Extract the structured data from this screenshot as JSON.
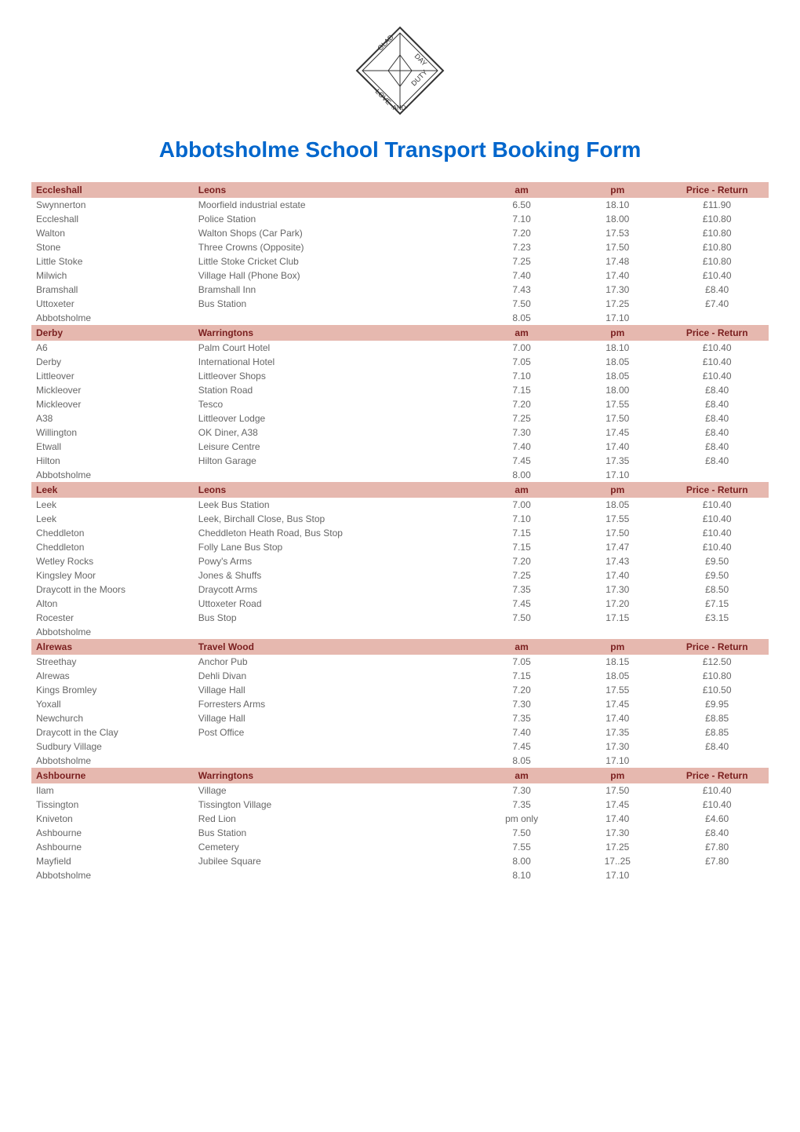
{
  "title": "Abbotsholme School Transport Booking Form",
  "title_color": "#0066cc",
  "header_bg": "#e6b8af",
  "header_fg": "#7a1f1f",
  "row_fg": "#666666",
  "headers": {
    "am": "am",
    "pm": "pm",
    "price": "Price - Return"
  },
  "sections": [
    {
      "route": "Eccleshall",
      "operator": "Leons",
      "rows": [
        {
          "loc": "Swynnerton",
          "stop": "Moorfield industrial estate",
          "am": "6.50",
          "pm": "18.10",
          "price": "£11.90"
        },
        {
          "loc": "Eccleshall",
          "stop": "Police Station",
          "am": "7.10",
          "pm": "18.00",
          "price": "£10.80"
        },
        {
          "loc": "Walton",
          "stop": "Walton Shops (Car Park)",
          "am": "7.20",
          "pm": "17.53",
          "price": "£10.80"
        },
        {
          "loc": "Stone",
          "stop": "Three Crowns (Opposite)",
          "am": "7.23",
          "pm": "17.50",
          "price": "£10.80"
        },
        {
          "loc": "Little Stoke",
          "stop": "Little Stoke Cricket Club",
          "am": "7.25",
          "pm": "17.48",
          "price": "£10.80"
        },
        {
          "loc": "Milwich",
          "stop": "Village Hall (Phone Box)",
          "am": "7.40",
          "pm": "17.40",
          "price": "£10.40"
        },
        {
          "loc": "Bramshall",
          "stop": "Bramshall Inn",
          "am": "7.43",
          "pm": "17.30",
          "price": "£8.40"
        },
        {
          "loc": "Uttoxeter",
          "stop": "Bus Station",
          "am": "7.50",
          "pm": "17.25",
          "price": "£7.40"
        },
        {
          "loc": "Abbotsholme",
          "stop": "",
          "am": "8.05",
          "pm": "17.10",
          "price": ""
        }
      ]
    },
    {
      "route": "Derby",
      "operator": "Warringtons",
      "rows": [
        {
          "loc": "A6",
          "stop": "Palm Court Hotel",
          "am": "7.00",
          "pm": "18.10",
          "price": "£10.40"
        },
        {
          "loc": "Derby",
          "stop": "International Hotel",
          "am": "7.05",
          "pm": "18.05",
          "price": "£10.40"
        },
        {
          "loc": "Littleover",
          "stop": "Littleover Shops",
          "am": "7.10",
          "pm": "18.05",
          "price": "£10.40"
        },
        {
          "loc": "Mickleover",
          "stop": "Station Road",
          "am": "7.15",
          "pm": "18.00",
          "price": "£8.40"
        },
        {
          "loc": "Mickleover",
          "stop": "Tesco",
          "am": "7.20",
          "pm": "17.55",
          "price": "£8.40"
        },
        {
          "loc": "A38",
          "stop": "Littleover Lodge",
          "am": "7.25",
          "pm": "17.50",
          "price": "£8.40"
        },
        {
          "loc": "Willington",
          "stop": "OK Diner, A38",
          "am": "7.30",
          "pm": "17.45",
          "price": "£8.40"
        },
        {
          "loc": "Etwall",
          "stop": "Leisure Centre",
          "am": "7.40",
          "pm": "17.40",
          "price": "£8.40"
        },
        {
          "loc": "Hilton",
          "stop": "Hilton Garage",
          "am": "7.45",
          "pm": "17.35",
          "price": "£8.40"
        },
        {
          "loc": "Abbotsholme",
          "stop": "",
          "am": "8.00",
          "pm": "17.10",
          "price": ""
        }
      ]
    },
    {
      "route": "Leek",
      "operator": "Leons",
      "rows": [
        {
          "loc": "Leek",
          "stop": "Leek Bus Station",
          "am": "7.00",
          "pm": "18.05",
          "price": "£10.40"
        },
        {
          "loc": "Leek",
          "stop": "Leek, Birchall Close, Bus Stop",
          "am": "7.10",
          "pm": "17.55",
          "price": "£10.40"
        },
        {
          "loc": "Cheddleton",
          "stop": "Cheddleton Heath Road, Bus Stop",
          "am": "7.15",
          "pm": "17.50",
          "price": "£10.40"
        },
        {
          "loc": "Cheddleton",
          "stop": "Folly Lane Bus Stop",
          "am": "7.15",
          "pm": "17.47",
          "price": "£10.40"
        },
        {
          "loc": "Wetley Rocks",
          "stop": "Powy's Arms",
          "am": "7.20",
          "pm": "17.43",
          "price": "£9.50"
        },
        {
          "loc": "Kingsley Moor",
          "stop": "Jones & Shuffs",
          "am": "7.25",
          "pm": "17.40",
          "price": "£9.50"
        },
        {
          "loc": "Draycott in the Moors",
          "stop": "Draycott Arms",
          "am": "7.35",
          "pm": "17.30",
          "price": "£8.50"
        },
        {
          "loc": "Alton",
          "stop": "Uttoxeter Road",
          "am": "7.45",
          "pm": "17.20",
          "price": "£7.15"
        },
        {
          "loc": "Rocester",
          "stop": "Bus Stop",
          "am": "7.50",
          "pm": "17.15",
          "price": "£3.15"
        },
        {
          "loc": "Abbotsholme",
          "stop": "",
          "am": "",
          "pm": "",
          "price": ""
        }
      ]
    },
    {
      "route": "Alrewas",
      "operator": "Travel Wood",
      "rows": [
        {
          "loc": "Streethay",
          "stop": "Anchor Pub",
          "am": "7.05",
          "pm": "18.15",
          "price": "£12.50"
        },
        {
          "loc": "Alrewas",
          "stop": "Dehli Divan",
          "am": "7.15",
          "pm": "18.05",
          "price": "£10.80"
        },
        {
          "loc": "Kings Bromley",
          "stop": "Village Hall",
          "am": "7.20",
          "pm": "17.55",
          "price": "£10.50"
        },
        {
          "loc": "Yoxall",
          "stop": "Forresters Arms",
          "am": "7.30",
          "pm": "17.45",
          "price": "£9.95"
        },
        {
          "loc": "Newchurch",
          "stop": "Village Hall",
          "am": "7.35",
          "pm": "17.40",
          "price": "£8.85"
        },
        {
          "loc": "Draycott in the Clay",
          "stop": "Post Office",
          "am": "7.40",
          "pm": "17.35",
          "price": "£8.85"
        },
        {
          "loc": "Sudbury Village",
          "stop": "",
          "am": "7.45",
          "pm": "17.30",
          "price": "£8.40"
        },
        {
          "loc": "Abbotsholme",
          "stop": "",
          "am": "8.05",
          "pm": "17.10",
          "price": ""
        }
      ]
    },
    {
      "route": "Ashbourne",
      "operator": "Warringtons",
      "rows": [
        {
          "loc": "Ilam",
          "stop": "Village",
          "am": "7.30",
          "pm": "17.50",
          "price": "£10.40"
        },
        {
          "loc": "Tissington",
          "stop": "Tissington Village",
          "am": "7.35",
          "pm": "17.45",
          "price": "£10.40"
        },
        {
          "loc": "Kniveton",
          "stop": "Red Lion",
          "am": "pm only",
          "pm": "17.40",
          "price": "£4.60"
        },
        {
          "loc": "Ashbourne",
          "stop": "Bus Station",
          "am": "7.50",
          "pm": "17.30",
          "price": "£8.40"
        },
        {
          "loc": "Ashbourne",
          "stop": "Cemetery",
          "am": "7.55",
          "pm": "17.25",
          "price": "£7.80"
        },
        {
          "loc": "Mayfield",
          "stop": "Jubilee Square",
          "am": "8.00",
          "pm": "17..25",
          "price": "£7.80"
        },
        {
          "loc": "Abbotsholme",
          "stop": "",
          "am": "8.10",
          "pm": "17.10",
          "price": ""
        }
      ]
    }
  ]
}
